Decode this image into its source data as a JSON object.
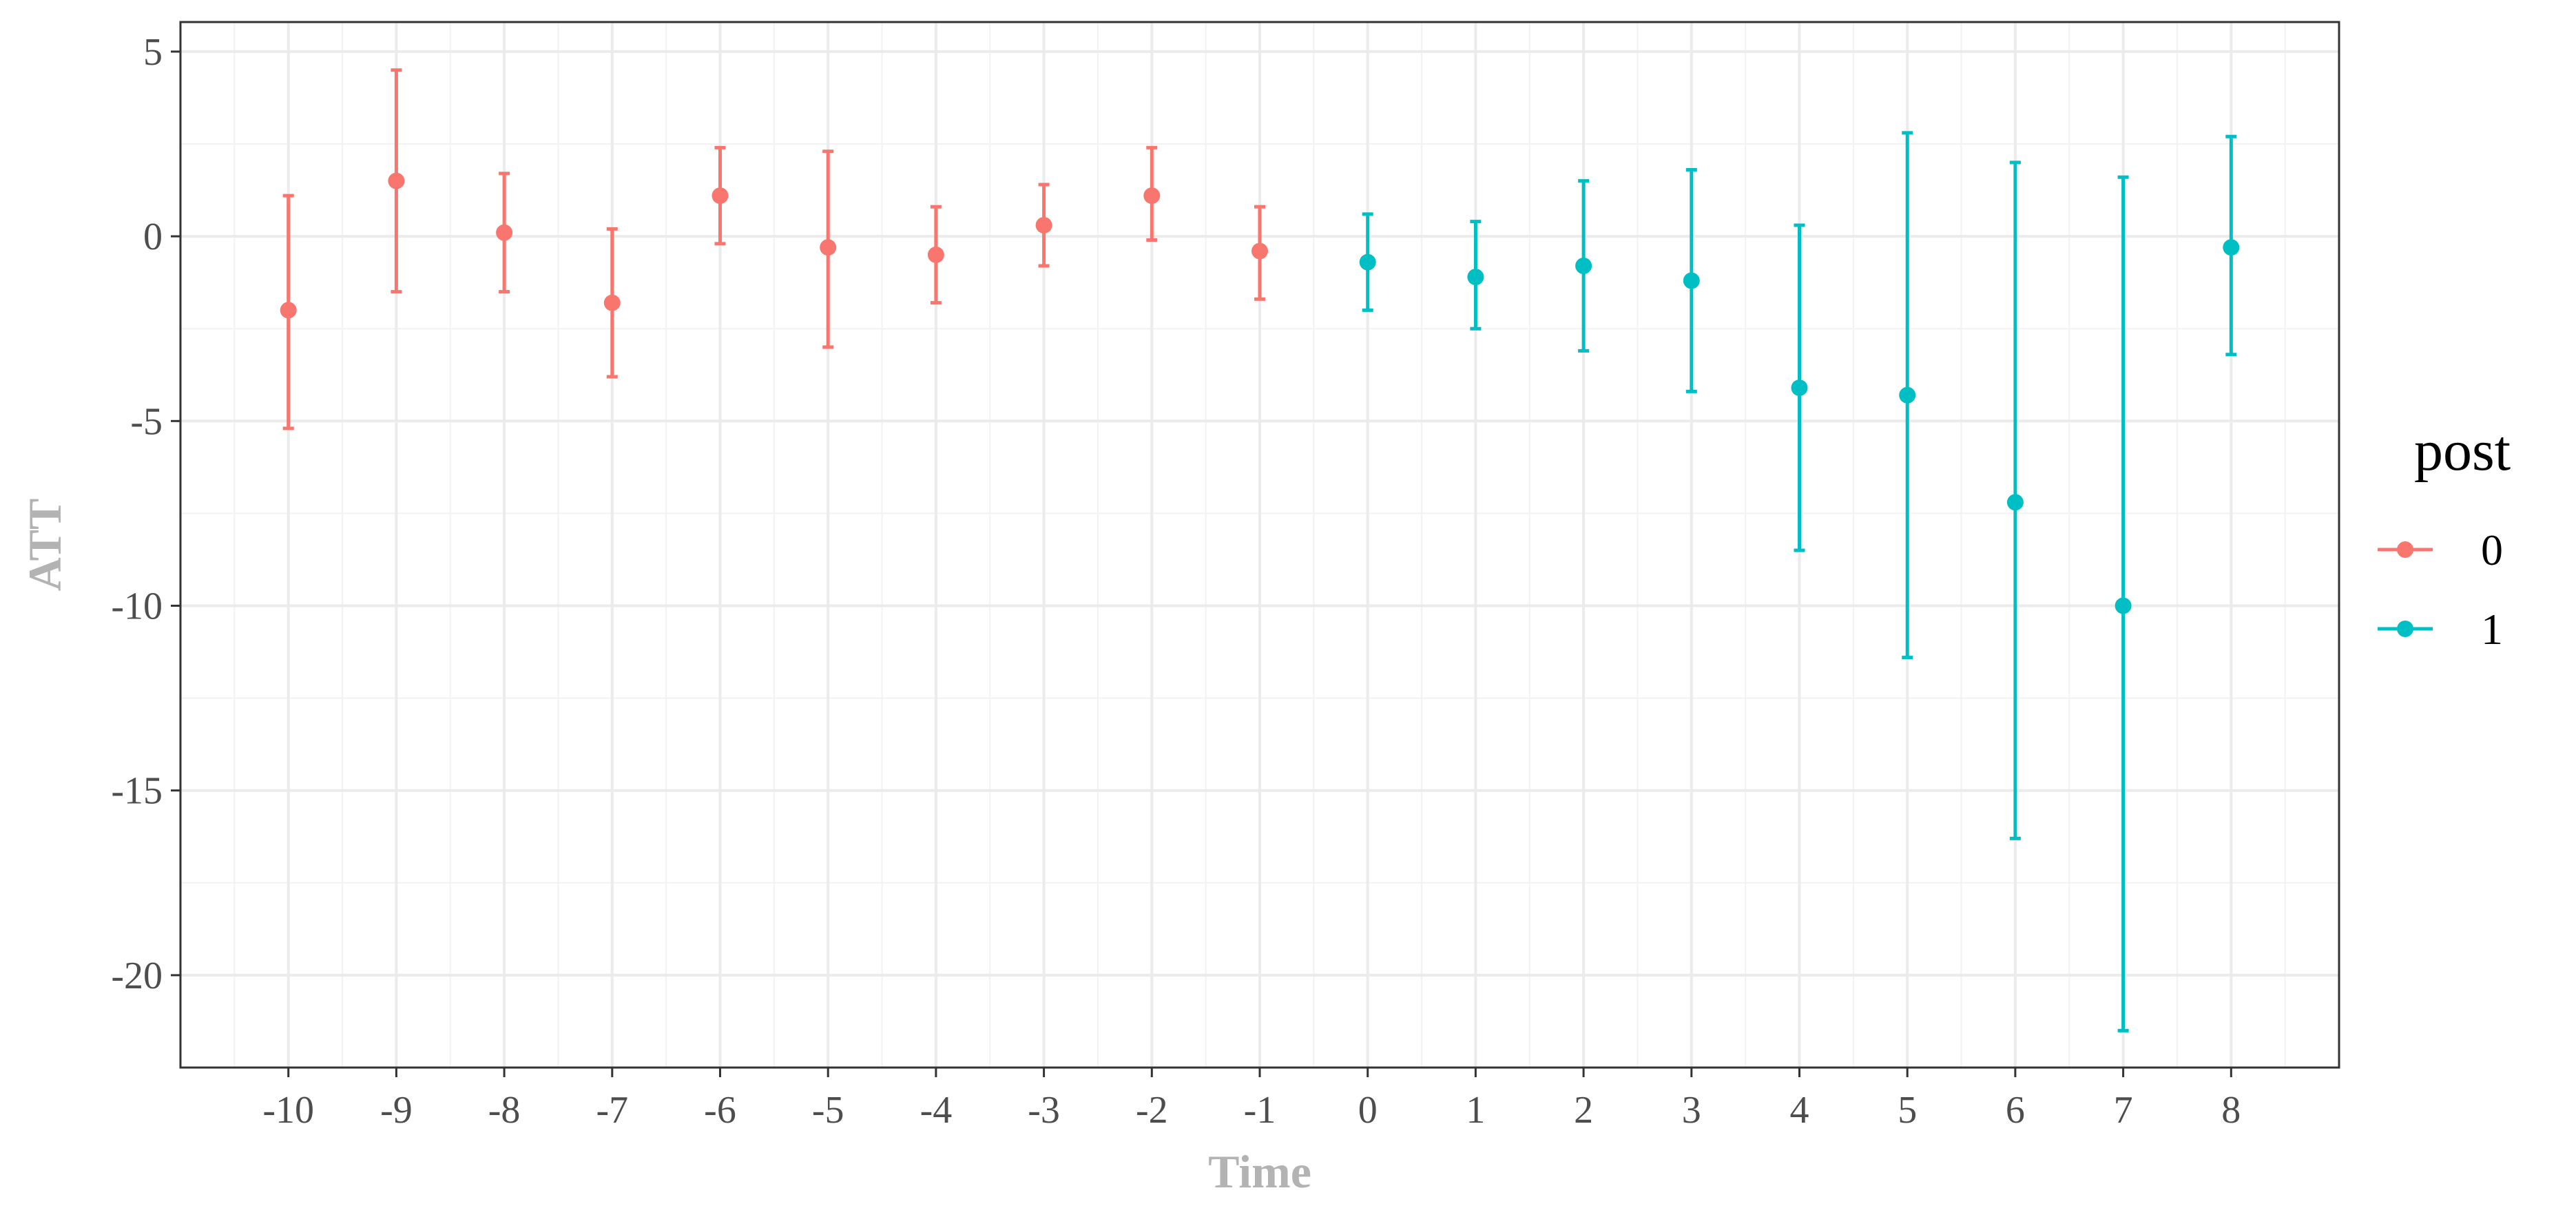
{
  "chart_data": {
    "type": "scatter",
    "title": "",
    "xlabel": "Time",
    "ylabel": "ATT",
    "xlim": [
      -11,
      9
    ],
    "ylim": [
      -22.5,
      5.8
    ],
    "x_ticks": [
      -10,
      -9,
      -8,
      -7,
      -6,
      -5,
      -4,
      -3,
      -2,
      -1,
      0,
      1,
      2,
      3,
      4,
      5,
      6,
      7,
      8
    ],
    "y_ticks": [
      5,
      0,
      -5,
      -10,
      -15,
      -20
    ],
    "grid": true,
    "legend": {
      "title": "post",
      "position": "right"
    },
    "series": [
      {
        "name": "0",
        "color": "#F8766D",
        "points": [
          {
            "x": -10,
            "y": -2.0,
            "lower": -5.2,
            "upper": 1.1
          },
          {
            "x": -9,
            "y": 1.5,
            "lower": -1.5,
            "upper": 4.5
          },
          {
            "x": -8,
            "y": 0.1,
            "lower": -1.5,
            "upper": 1.7
          },
          {
            "x": -7,
            "y": -1.8,
            "lower": -3.8,
            "upper": 0.2
          },
          {
            "x": -6,
            "y": 1.1,
            "lower": -0.2,
            "upper": 2.4
          },
          {
            "x": -5,
            "y": -0.3,
            "lower": -3.0,
            "upper": 2.3
          },
          {
            "x": -4,
            "y": -0.5,
            "lower": -1.8,
            "upper": 0.8
          },
          {
            "x": -3,
            "y": 0.3,
            "lower": -0.8,
            "upper": 1.4
          },
          {
            "x": -2,
            "y": 1.1,
            "lower": -0.1,
            "upper": 2.4
          },
          {
            "x": -1,
            "y": -0.4,
            "lower": -1.7,
            "upper": 0.8
          }
        ]
      },
      {
        "name": "1",
        "color": "#00BFC4",
        "points": [
          {
            "x": 0,
            "y": -0.7,
            "lower": -2.0,
            "upper": 0.6
          },
          {
            "x": 1,
            "y": -1.1,
            "lower": -2.5,
            "upper": 0.4
          },
          {
            "x": 2,
            "y": -0.8,
            "lower": -3.1,
            "upper": 1.5
          },
          {
            "x": 3,
            "y": -1.2,
            "lower": -4.2,
            "upper": 1.8
          },
          {
            "x": 4,
            "y": -4.1,
            "lower": -8.5,
            "upper": 0.3
          },
          {
            "x": 5,
            "y": -4.3,
            "lower": -11.4,
            "upper": 2.8
          },
          {
            "x": 6,
            "y": -7.2,
            "lower": -16.3,
            "upper": 2.0
          },
          {
            "x": 7,
            "y": -10.0,
            "lower": -21.5,
            "upper": 1.6
          },
          {
            "x": 8,
            "y": -0.3,
            "lower": -3.2,
            "upper": 2.7
          }
        ]
      }
    ]
  }
}
